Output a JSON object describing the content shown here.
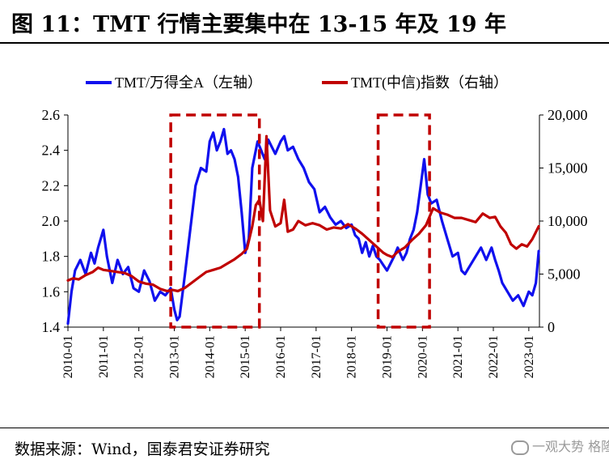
{
  "title": "图 11：TMT 行情主要集中在 13-15 年及 19 年",
  "source": "数据来源：Wind，国泰君安证券研究",
  "watermark": "一观大势 格隆汇",
  "colors": {
    "blue": "#1010ee",
    "red": "#c00000",
    "box": "#c00000"
  },
  "chart_data": {
    "type": "line",
    "title": "图 11：TMT 行情主要集中在 13-15 年及 19 年",
    "x_range": [
      "2010-01",
      "2023-04"
    ],
    "x_tick_labels": [
      "2010-01",
      "2011-01",
      "2012-01",
      "2013-01",
      "2014-01",
      "2015-01",
      "2016-01",
      "2017-01",
      "2018-01",
      "2019-01",
      "2020-01",
      "2021-01",
      "2022-01",
      "2023-01"
    ],
    "y_left": {
      "ylim": [
        1.4,
        2.6
      ],
      "ticks": [
        "1.4",
        "1.6",
        "1.8",
        "2.0",
        "2.2",
        "2.4",
        "2.6"
      ]
    },
    "y_right": {
      "ylim": [
        0,
        20000
      ],
      "ticks": [
        "0",
        "5,000",
        "10,000",
        "15,000",
        "20,000"
      ]
    },
    "legend_placement": "top",
    "series": [
      {
        "name": "TMT/万得全A（左轴）",
        "axis": "left",
        "color": "#1010ee",
        "x": [
          2010.0,
          2010.1,
          2010.2,
          2010.35,
          2010.5,
          2010.65,
          2010.75,
          2010.85,
          2011.0,
          2011.1,
          2011.25,
          2011.4,
          2011.55,
          2011.7,
          2011.85,
          2012.0,
          2012.15,
          2012.3,
          2012.45,
          2012.6,
          2012.75,
          2012.9,
          2013.0,
          2013.08,
          2013.15,
          2013.3,
          2013.45,
          2013.6,
          2013.75,
          2013.9,
          2014.0,
          2014.1,
          2014.2,
          2014.3,
          2014.4,
          2014.5,
          2014.6,
          2014.7,
          2014.8,
          2014.9,
          2015.0,
          2015.1,
          2015.2,
          2015.35,
          2015.45,
          2015.55,
          2015.65,
          2015.75,
          2015.85,
          2016.0,
          2016.1,
          2016.2,
          2016.35,
          2016.5,
          2016.65,
          2016.8,
          2016.95,
          2017.1,
          2017.25,
          2017.4,
          2017.55,
          2017.7,
          2017.85,
          2018.0,
          2018.1,
          2018.2,
          2018.3,
          2018.4,
          2018.5,
          2018.6,
          2018.7,
          2018.8,
          2018.9,
          2019.0,
          2019.1,
          2019.2,
          2019.3,
          2019.45,
          2019.55,
          2019.65,
          2019.75,
          2019.85,
          2019.95,
          2020.05,
          2020.15,
          2020.25,
          2020.4,
          2020.55,
          2020.7,
          2020.85,
          2021.0,
          2021.1,
          2021.2,
          2021.35,
          2021.5,
          2021.65,
          2021.8,
          2021.95,
          2022.05,
          2022.15,
          2022.25,
          2022.4,
          2022.55,
          2022.7,
          2022.85,
          2023.0,
          2023.1,
          2023.2,
          2023.28
        ],
        "values": [
          1.42,
          1.6,
          1.72,
          1.78,
          1.7,
          1.82,
          1.76,
          1.85,
          1.95,
          1.8,
          1.65,
          1.78,
          1.7,
          1.74,
          1.62,
          1.6,
          1.72,
          1.66,
          1.55,
          1.6,
          1.58,
          1.62,
          1.5,
          1.44,
          1.46,
          1.7,
          1.95,
          2.2,
          2.3,
          2.28,
          2.45,
          2.5,
          2.4,
          2.45,
          2.52,
          2.38,
          2.4,
          2.35,
          2.25,
          2.05,
          1.82,
          1.9,
          2.3,
          2.45,
          2.4,
          2.35,
          2.46,
          2.42,
          2.38,
          2.45,
          2.48,
          2.4,
          2.42,
          2.35,
          2.3,
          2.22,
          2.18,
          2.05,
          2.08,
          2.02,
          1.98,
          2.0,
          1.96,
          1.98,
          1.92,
          1.9,
          1.82,
          1.88,
          1.8,
          1.86,
          1.8,
          1.78,
          1.75,
          1.72,
          1.76,
          1.8,
          1.85,
          1.78,
          1.82,
          1.9,
          1.95,
          2.05,
          2.2,
          2.35,
          2.15,
          2.1,
          2.12,
          2.0,
          1.9,
          1.8,
          1.82,
          1.72,
          1.7,
          1.75,
          1.8,
          1.85,
          1.78,
          1.85,
          1.78,
          1.72,
          1.65,
          1.6,
          1.55,
          1.58,
          1.52,
          1.6,
          1.58,
          1.65,
          1.83
        ]
      },
      {
        "name": "TMT(中信)指数（右轴）",
        "axis": "right",
        "color": "#c00000",
        "x": [
          2010.0,
          2010.15,
          2010.3,
          2010.5,
          2010.7,
          2010.85,
          2011.0,
          2011.2,
          2011.4,
          2011.6,
          2011.8,
          2012.0,
          2012.2,
          2012.4,
          2012.6,
          2012.8,
          2012.95,
          2013.1,
          2013.3,
          2013.5,
          2013.7,
          2013.9,
          2014.1,
          2014.3,
          2014.5,
          2014.7,
          2014.9,
          2015.05,
          2015.2,
          2015.3,
          2015.4,
          2015.5,
          2015.6,
          2015.7,
          2015.85,
          2016.0,
          2016.1,
          2016.2,
          2016.35,
          2016.5,
          2016.7,
          2016.9,
          2017.1,
          2017.3,
          2017.5,
          2017.7,
          2017.9,
          2018.1,
          2018.3,
          2018.5,
          2018.7,
          2018.9,
          2019.0,
          2019.15,
          2019.3,
          2019.5,
          2019.7,
          2019.9,
          2020.1,
          2020.3,
          2020.5,
          2020.7,
          2020.9,
          2021.1,
          2021.3,
          2021.5,
          2021.7,
          2021.9,
          2022.05,
          2022.2,
          2022.35,
          2022.5,
          2022.65,
          2022.8,
          2022.95,
          2023.1,
          2023.28
        ],
        "values": [
          4400,
          4600,
          4500,
          4900,
          5200,
          5600,
          5400,
          5300,
          5200,
          5100,
          4800,
          4300,
          4100,
          4000,
          3600,
          3400,
          3500,
          3400,
          3700,
          4200,
          4700,
          5200,
          5400,
          5600,
          6000,
          6400,
          6900,
          7400,
          9500,
          11500,
          12000,
          10000,
          18000,
          11000,
          9500,
          9800,
          12000,
          9000,
          9200,
          10000,
          9600,
          9800,
          9600,
          9200,
          9400,
          9300,
          9700,
          9300,
          8800,
          8200,
          7600,
          7000,
          6800,
          6600,
          7100,
          7500,
          8200,
          8800,
          9600,
          11200,
          10800,
          10600,
          10300,
          10300,
          10100,
          9900,
          10700,
          10300,
          10400,
          9500,
          8900,
          7800,
          7400,
          7800,
          7600,
          8300,
          9500
        ]
      }
    ],
    "annotations": [
      {
        "type": "dashed-box",
        "x_start": 2012.9,
        "x_end": 2015.4,
        "y_from": 1.4,
        "y_to": 2.6,
        "axis": "left"
      },
      {
        "type": "dashed-box",
        "x_start": 2018.75,
        "x_end": 2020.2,
        "y_from": 1.4,
        "y_to": 2.6,
        "axis": "left"
      }
    ]
  }
}
